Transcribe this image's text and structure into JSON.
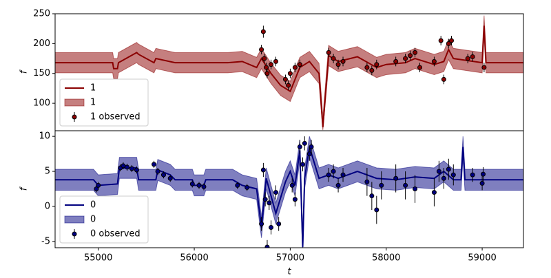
{
  "chart_data": [
    {
      "type": "line",
      "ylabel": "f",
      "xlim": [
        54550,
        59430
      ],
      "ylim": [
        54,
        250
      ],
      "yticks": [
        100,
        150,
        200,
        250
      ],
      "legend": "lower left",
      "x": [
        54550,
        55150,
        55160,
        55200,
        55210,
        55400,
        55420,
        55580,
        55600,
        55800,
        55820,
        56350,
        56500,
        56650,
        56700,
        56800,
        56900,
        57000,
        57100,
        57200,
        57300,
        57340,
        57400,
        57500,
        57700,
        57900,
        58000,
        58200,
        58300,
        58500,
        58600,
        58650,
        58700,
        59000,
        59020,
        59040,
        59430
      ],
      "series": [
        {
          "name": "1",
          "color": "#8b0000",
          "values": [
            168,
            168,
            158,
            158,
            168,
            185,
            182,
            168,
            175,
            168,
            168,
            168,
            170,
            160,
            175,
            150,
            130,
            120,
            160,
            170,
            150,
            60,
            180,
            170,
            178,
            160,
            165,
            168,
            175,
            165,
            170,
            190,
            175,
            168,
            230,
            168,
            168
          ]
        },
        {
          "name": "1",
          "color": "#8b0000",
          "lower": [
            151,
            151,
            141,
            141,
            151,
            168,
            165,
            151,
            158,
            151,
            151,
            151,
            153,
            143,
            158,
            133,
            113,
            103,
            143,
            153,
            133,
            55,
            163,
            153,
            161,
            143,
            148,
            151,
            158,
            148,
            153,
            173,
            158,
            151,
            213,
            151,
            151
          ],
          "upper": [
            185,
            185,
            175,
            175,
            185,
            202,
            199,
            185,
            192,
            185,
            185,
            185,
            187,
            177,
            192,
            167,
            147,
            137,
            177,
            187,
            167,
            77,
            197,
            187,
            195,
            177,
            182,
            185,
            192,
            182,
            187,
            207,
            192,
            185,
            247,
            185,
            185
          ]
        },
        {
          "name": "1 observed",
          "color": "#8b0000",
          "x": [
            56700,
            56720,
            56730,
            56750,
            56760,
            56800,
            56850,
            56950,
            56980,
            57000,
            57050,
            57100,
            57400,
            57450,
            57500,
            57550,
            57800,
            57850,
            57900,
            58100,
            58200,
            58250,
            58300,
            58350,
            58500,
            58570,
            58600,
            58650,
            58680,
            58850,
            58900,
            59020
          ],
          "values": [
            190,
            220,
            175,
            160,
            150,
            165,
            170,
            140,
            130,
            150,
            160,
            165,
            185,
            175,
            165,
            170,
            160,
            155,
            165,
            170,
            175,
            180,
            185,
            160,
            170,
            205,
            140,
            200,
            205,
            175,
            178,
            160
          ],
          "errors": [
            8,
            10,
            8,
            8,
            8,
            8,
            8,
            8,
            8,
            8,
            8,
            8,
            8,
            8,
            8,
            8,
            8,
            8,
            8,
            8,
            8,
            8,
            8,
            8,
            8,
            8,
            8,
            8,
            8,
            8,
            8,
            8
          ]
        }
      ]
    },
    {
      "type": "line",
      "ylabel": "f",
      "xlabel": "t",
      "xlim": [
        54550,
        59430
      ],
      "xticks": [
        55000,
        56000,
        57000,
        58000,
        59000
      ],
      "ylim": [
        -5.9,
        10.8
      ],
      "yticks": [
        -5,
        0,
        5,
        10
      ],
      "legend": "lower left",
      "x": [
        54550,
        54950,
        55000,
        55200,
        55220,
        55400,
        55420,
        55600,
        55620,
        55750,
        55800,
        55980,
        56000,
        56100,
        56120,
        56400,
        56500,
        56650,
        56700,
        56750,
        56850,
        56950,
        57000,
        57050,
        57100,
        57130,
        57150,
        57200,
        57300,
        57400,
        57500,
        57700,
        57900,
        58100,
        58300,
        58500,
        58600,
        58700,
        58780,
        58800,
        58820,
        59430
      ],
      "series": [
        {
          "name": "0",
          "color": "#000080",
          "values": [
            3.8,
            3.8,
            3.0,
            3.2,
            5.5,
            5.5,
            3.8,
            3.8,
            5.2,
            4.5,
            3.8,
            3.8,
            3.0,
            3.0,
            3.8,
            3.8,
            3.0,
            2.5,
            -3,
            4,
            -1,
            3.5,
            5,
            3,
            8,
            -5.8,
            4,
            8.5,
            4,
            4.5,
            4,
            5,
            4,
            3.8,
            4.2,
            4,
            5,
            3.8,
            3.8,
            8.5,
            3.8,
            3.8
          ]
        },
        {
          "name": "0",
          "color": "#000080",
          "lower": [
            2.3,
            2.3,
            1.5,
            1.7,
            4.0,
            4.0,
            2.3,
            2.3,
            3.7,
            3.0,
            2.3,
            2.3,
            1.5,
            1.5,
            2.3,
            2.3,
            1.5,
            1.0,
            -4.5,
            2.5,
            -2.5,
            2.0,
            3.5,
            1.5,
            6.5,
            -7.3,
            2.5,
            7.0,
            2.5,
            3.0,
            2.5,
            3.5,
            2.5,
            2.3,
            2.7,
            2.5,
            3.5,
            2.3,
            2.3,
            7.0,
            2.3,
            2.3
          ],
          "upper": [
            5.3,
            5.3,
            4.5,
            4.7,
            7.0,
            7.0,
            5.3,
            5.3,
            6.7,
            6.0,
            5.3,
            5.3,
            4.5,
            4.5,
            5.3,
            5.3,
            4.5,
            4.0,
            -1.5,
            5.5,
            0.5,
            5.0,
            6.5,
            4.5,
            9.5,
            -4.3,
            5.5,
            10.0,
            5.5,
            6.0,
            5.5,
            6.5,
            5.5,
            5.3,
            5.7,
            5.5,
            6.5,
            5.3,
            5.3,
            10.0,
            5.3,
            5.3
          ]
        },
        {
          "name": "0 observed",
          "color": "#000080",
          "x": [
            54980,
            55000,
            55230,
            55260,
            55300,
            55350,
            55400,
            55580,
            55620,
            55680,
            55750,
            55980,
            56050,
            56100,
            56450,
            56550,
            56700,
            56720,
            56740,
            56760,
            56780,
            56800,
            56850,
            56880,
            57020,
            57050,
            57100,
            57130,
            57150,
            57200,
            57220,
            57400,
            57450,
            57500,
            57550,
            57800,
            57850,
            57900,
            57950,
            58100,
            58200,
            58300,
            58500,
            58550,
            58600,
            58650,
            58700,
            58900,
            59000,
            59010
          ],
          "values": [
            2.5,
            3,
            5.5,
            5.8,
            5.6,
            5.4,
            5.2,
            6,
            5,
            4.5,
            4,
            3.2,
            3,
            2.8,
            3,
            2.7,
            -2.5,
            5.2,
            1,
            -5.8,
            0.5,
            -3,
            2,
            -2.5,
            3,
            1,
            8.5,
            6,
            9,
            7.5,
            8.5,
            4.5,
            5,
            3,
            4.5,
            3.5,
            1.5,
            -0.5,
            3,
            4,
            3,
            2.5,
            2,
            5,
            4,
            5.3,
            4.5,
            4.5,
            3.3,
            4.6
          ],
          "errors": [
            0.5,
            0.5,
            0.5,
            0.5,
            0.5,
            0.5,
            0.5,
            0.5,
            0.5,
            0.5,
            0.5,
            0.5,
            0.5,
            0.5,
            0.5,
            0.5,
            1,
            1,
            1,
            1,
            1,
            1,
            1,
            1,
            1,
            1,
            1,
            1,
            1,
            1,
            1,
            1,
            1,
            1,
            1,
            2,
            2,
            2,
            2,
            2,
            2,
            2,
            2,
            1.5,
            1.5,
            1.5,
            1.5,
            1,
            1,
            1
          ]
        }
      ]
    }
  ]
}
